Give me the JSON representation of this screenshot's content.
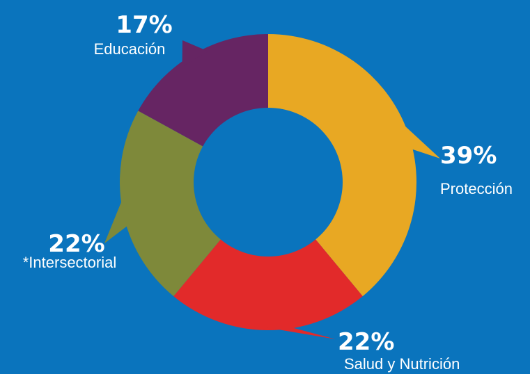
{
  "chart_data": {
    "type": "pie",
    "variant": "donut",
    "categories": [
      "Protección",
      "Salud y Nutrición",
      "*Intersectorial",
      "Educación"
    ],
    "values": [
      39,
      22,
      22,
      17
    ],
    "value_labels": [
      "39%",
      "22%",
      "22%",
      "17%"
    ],
    "colors": [
      "#e8a823",
      "#e22a2a",
      "#7e893a",
      "#662563"
    ],
    "start": "top",
    "direction": "clockwise",
    "legend": "callout labels around donut"
  },
  "colors": {
    "background": "#0a74bd"
  }
}
